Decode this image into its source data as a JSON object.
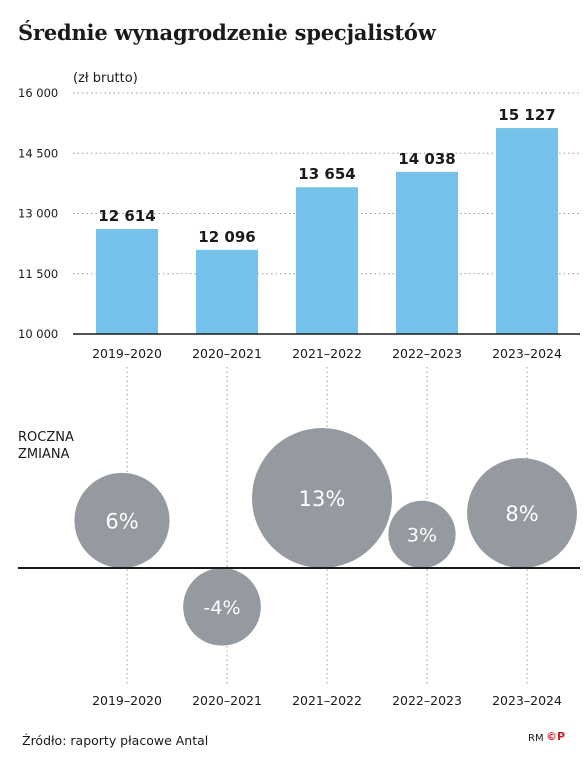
{
  "title": "Średnie wynagrodzenie specjalistów",
  "source": "Źródło: raporty płacowe Antal",
  "credit": "RM",
  "logo_text": "©P",
  "colors": {
    "bar": "#74c2ea",
    "bubble": "#949aa0",
    "axis": "#1a1a1a",
    "grid": "#9a9a9a",
    "bubble_text": "#ffffff",
    "logo": "#d0202a"
  },
  "chart_data": [
    {
      "type": "bar",
      "unit_label": "(zł brutto)",
      "categories": [
        "2019–2020",
        "2020–2021",
        "2021–2022",
        "2022–2023",
        "2023–2024"
      ],
      "values": [
        12614,
        12096,
        13654,
        14038,
        15127
      ],
      "value_labels": [
        "12 614",
        "12 096",
        "13 654",
        "14 038",
        "15 127"
      ],
      "ylim": [
        10000,
        16000
      ],
      "yticks": [
        10000,
        11500,
        13000,
        14500,
        16000
      ],
      "ytick_labels": [
        "10 000",
        "11 500",
        "13 000",
        "14 500",
        "16 000"
      ],
      "grid": "dotted horizontal"
    },
    {
      "type": "bubble",
      "label_lines": [
        "ROCZNA",
        "ZMIANA"
      ],
      "categories": [
        "2019–2020",
        "2020–2021",
        "2021–2022",
        "2022–2023",
        "2023–2024"
      ],
      "values": [
        6,
        -4,
        13,
        3,
        8
      ],
      "value_labels": [
        "6%",
        "-4%",
        "13%",
        "3%",
        "8%"
      ]
    }
  ]
}
